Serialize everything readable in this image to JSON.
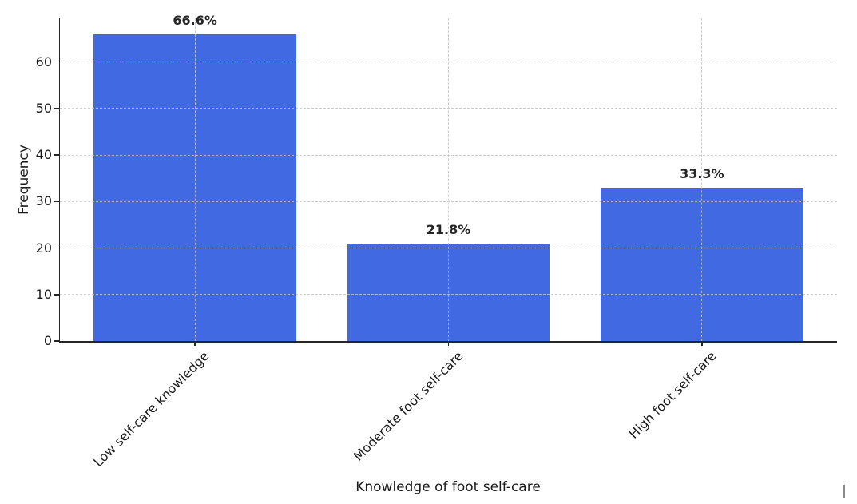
{
  "figure": {
    "background_color": "#ffffff",
    "bar_color": "#4169e1",
    "grid_color": "#c3c3c3",
    "spine_color": "#262626",
    "text_color": "#1a1a1a",
    "value_label_color": "#262626"
  },
  "chart_data": {
    "type": "bar",
    "title": "",
    "xlabel": "Knowledge of foot self-care",
    "ylabel": "Frequency",
    "categories": [
      "Low self-care knowledge",
      "Moderate foot self-care",
      "High foot self-care"
    ],
    "values": [
      66,
      21,
      33
    ],
    "bar_labels": [
      "66.6%",
      "21.8%",
      "33.3%"
    ],
    "yticks": [
      0,
      10,
      20,
      30,
      40,
      50,
      60
    ],
    "ylim": [
      0,
      69.4
    ],
    "xtick_rotation_deg": 45,
    "grid": "dashed-both-axes-drawn-above-bars",
    "legend_position": "none"
  }
}
